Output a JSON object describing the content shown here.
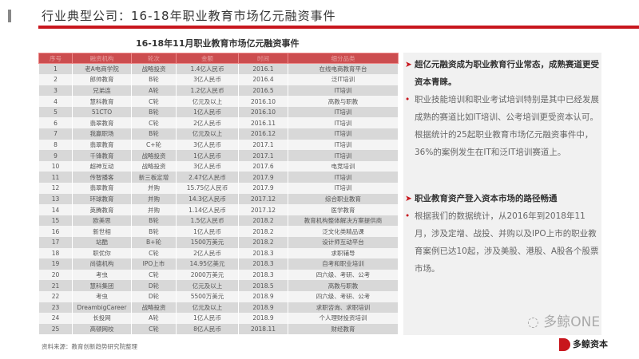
{
  "header": {
    "title": "行业典型公司：16-18年职业教育市场亿元融资事件",
    "subtitle": "16-18年11月职业教育市场亿元融资事件"
  },
  "table": {
    "columns": [
      "序号",
      "融资机构",
      "轮次",
      "金额",
      "时间",
      "细分品类"
    ],
    "rows": [
      [
        "1",
        "老A电商学院",
        "战略投资",
        "1.4亿人民币",
        "2016.1",
        "在线电商教育平台"
      ],
      [
        "2",
        "郎帅教育",
        "B轮",
        "3亿人民币",
        "2016.4",
        "泛IT培训"
      ],
      [
        "3",
        "兄弟连",
        "A轮",
        "1.2亿人民币",
        "2016.5",
        "IT培训"
      ],
      [
        "4",
        "慧科教育",
        "C轮",
        "亿元及以上",
        "2016.10",
        "高教与职教"
      ],
      [
        "5",
        "51CTO",
        "B轮",
        "1亿人民币",
        "2016.10",
        "IT培训"
      ],
      [
        "6",
        "翡翠教育",
        "C轮",
        "2亿人民币",
        "2016.11",
        "IT培训"
      ],
      [
        "7",
        "我赢职场",
        "B轮",
        "亿元及以上",
        "2016.12",
        "IT培训"
      ],
      [
        "8",
        "翡翠教育",
        "C+轮",
        "3亿人民币",
        "2017.1",
        "IT培训"
      ],
      [
        "9",
        "千锋教育",
        "战略投资",
        "1亿人民币",
        "2017.1",
        "IT培训"
      ],
      [
        "10",
        "超神互动",
        "战略投资",
        "3亿人民币",
        "2017.6",
        "电竞培训"
      ],
      [
        "11",
        "传智播客",
        "新三板定增",
        "2.47亿人民币",
        "2017.9",
        "IT培训"
      ],
      [
        "12",
        "翡翠教育",
        "并购",
        "15.75亿人民币",
        "2017.9",
        "IT培训"
      ],
      [
        "13",
        "环球教育",
        "并购",
        "14.3亿人民币",
        "2017.12",
        "综合职业教育"
      ],
      [
        "14",
        "英腾教育",
        "并购",
        "1.14亿人民币",
        "2017.12",
        "医学教育"
      ],
      [
        "15",
        "欧美思",
        "B轮",
        "1.5亿人民币",
        "2018.2",
        "教育机构整体解决方案提供商"
      ],
      [
        "16",
        "新世相",
        "B轮",
        "1亿人民币",
        "2018.2",
        "泛文化类精品课"
      ],
      [
        "17",
        "站酷",
        "B+轮",
        "1500万美元",
        "2018.2",
        "设计师互动平台"
      ],
      [
        "18",
        "职优你",
        "C轮",
        "2亿人民币",
        "2018.3",
        "求职辅导"
      ],
      [
        "19",
        "尚德机构",
        "IPO上市",
        "14.95亿美元",
        "2018.3",
        "自考和职业培训"
      ],
      [
        "20",
        "考虫",
        "C轮",
        "2000万美元",
        "2018.3",
        "四六级、考研、公考"
      ],
      [
        "21",
        "慧科集团",
        "D轮",
        "亿元及以上",
        "2018.5",
        "高教与职教"
      ],
      [
        "22",
        "考虫",
        "D轮",
        "5500万美元",
        "2018.9",
        "四六级、考研、公考"
      ],
      [
        "23",
        "DreambigCareer",
        "战略投资",
        "亿元及以上",
        "2018.9",
        "求职咨询、求职培训"
      ],
      [
        "24",
        "长投网",
        "A轮",
        "1亿人民币",
        "2018.9",
        "个人理财投资培训"
      ],
      [
        "25",
        "高顿网校",
        "C轮",
        "8亿人民币",
        "2018.11",
        "财经教育"
      ]
    ]
  },
  "source": "资料来源：教育创新趋势研究院整理",
  "panel": {
    "items": [
      {
        "head": "超亿元融资成为职业教育行业常态，成熟赛道更受资本青睐。",
        "body": "职业技能培训和职业考试培训特别是其中已经发展成熟的赛道比如IT培训、公考培训更受资本认可。根据统计的25起职业教育市场亿元融资事件中，36%的案例发生在IT和泛IT培训赛道上。"
      },
      {
        "head": "职业教育资产登入资本市场的路径畅通",
        "body": "根据我们的数据统计，从2016年到2018年11月，涉及定增、战投、并购以及IPO上市的职业教育案例已达10起，涉及美股、港股、A股各个股票市场。"
      }
    ]
  },
  "watermark": {
    "wechat": "多鲸ONE",
    "brand": "多鲸资本"
  },
  "colors": {
    "accent": "#c8161d",
    "header": "#cc4d4f"
  }
}
